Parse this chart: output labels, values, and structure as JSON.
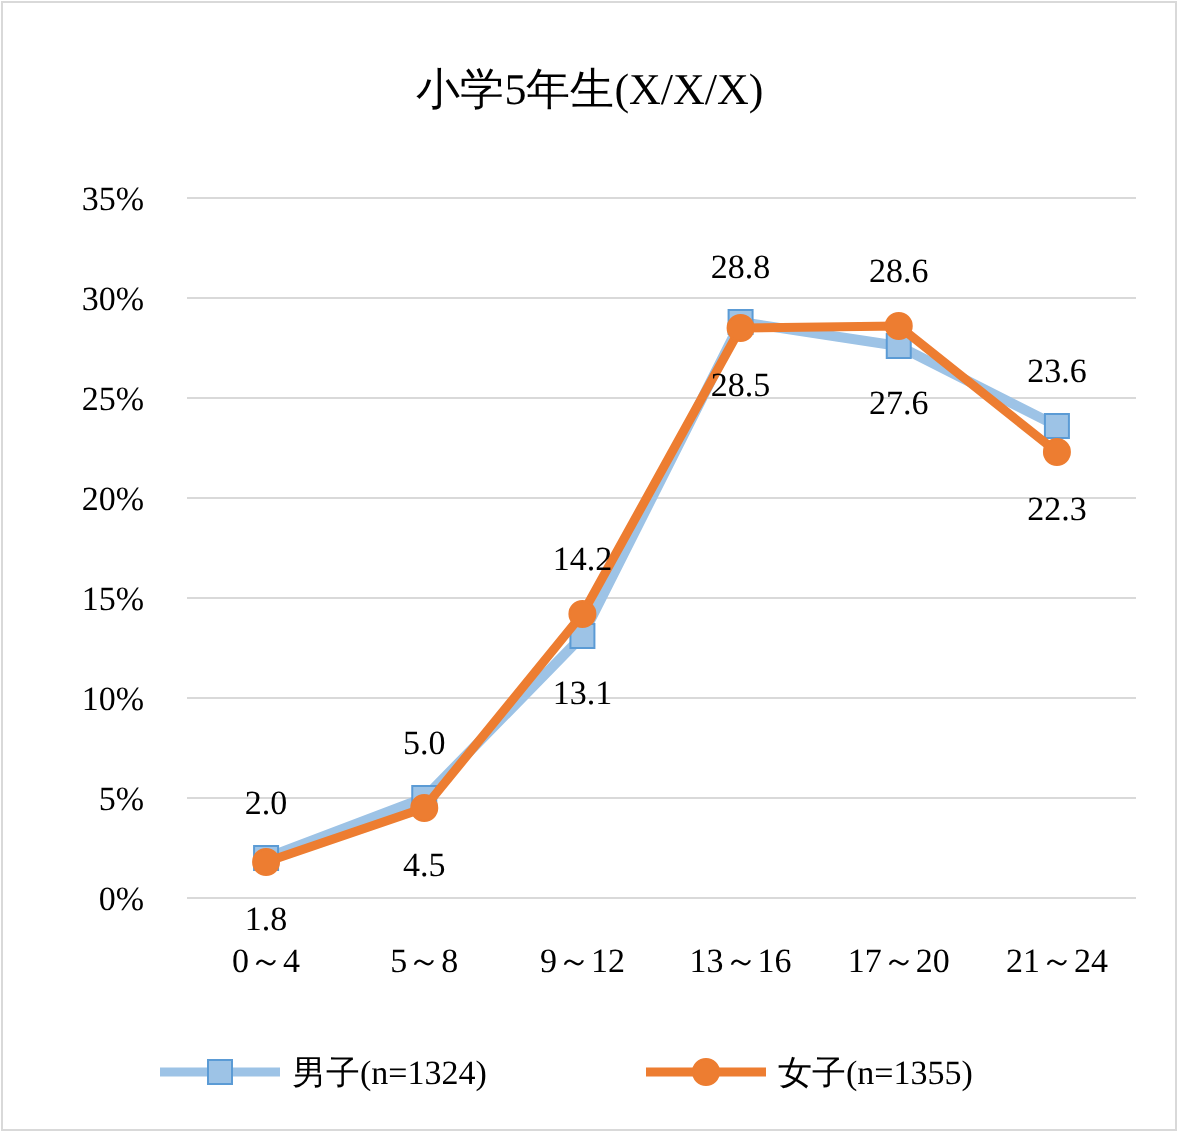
{
  "chart_data": {
    "type": "line",
    "title": "小学5年生(X/X/X)",
    "categories": [
      "0～4",
      "5～8",
      "9～12",
      "13～16",
      "17～20",
      "21～24"
    ],
    "series": [
      {
        "name": "男子(n=1324)",
        "color": "#9dc3e6",
        "marker": "square",
        "values": [
          2.0,
          5.0,
          13.1,
          28.8,
          27.6,
          23.6
        ],
        "value_labels": [
          "2.0",
          "5.0",
          "13.1",
          "28.8",
          "27.6",
          "23.6"
        ]
      },
      {
        "name": "女子(n=1355)",
        "color": "#ed7d31",
        "marker": "circle",
        "values": [
          1.8,
          4.5,
          14.2,
          28.5,
          28.6,
          22.3
        ],
        "value_labels": [
          "1.8",
          "4.5",
          "14.2",
          "28.5",
          "28.6",
          "22.3"
        ]
      }
    ],
    "ylim": [
      0,
      35
    ],
    "yticks": [
      {
        "value": 0,
        "label": "0%"
      },
      {
        "value": 5,
        "label": "5%"
      },
      {
        "value": 10,
        "label": "10%"
      },
      {
        "value": 15,
        "label": "15%"
      },
      {
        "value": 20,
        "label": "20%"
      },
      {
        "value": 25,
        "label": "25%"
      },
      {
        "value": 30,
        "label": "30%"
      },
      {
        "value": 35,
        "label": "35%"
      }
    ],
    "grid": "y",
    "legend": "bottom",
    "line_style": "solid"
  }
}
